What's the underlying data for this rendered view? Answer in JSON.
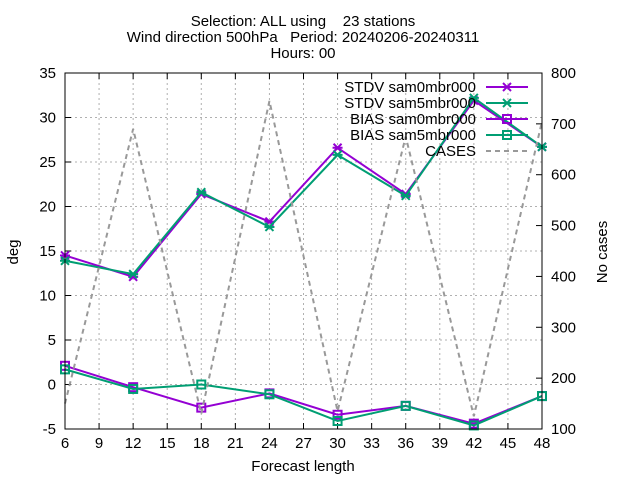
{
  "chart_data": {
    "type": "line",
    "title_lines": [
      "Selection: ALL using    23 stations",
      "Wind direction 500hPa   Period: 20240206-20240311",
      "Hours: 00"
    ],
    "xlabel": "Forecast length",
    "ylabel": "deg",
    "y2label": "No cases",
    "xlim": [
      6,
      48
    ],
    "ylim": [
      -5,
      35
    ],
    "y2lim": [
      100,
      800
    ],
    "xticks": [
      "6",
      "9",
      "12",
      "15",
      "18",
      "21",
      "24",
      "27",
      "30",
      "33",
      "36",
      "39",
      "42",
      "45",
      "48"
    ],
    "yticks": [
      "-5",
      "0",
      "5",
      "10",
      "15",
      "20",
      "25",
      "30",
      "35"
    ],
    "y2ticks": [
      "100",
      "200",
      "300",
      "400",
      "500",
      "600",
      "700",
      "800"
    ],
    "grid": true,
    "legend_position": "top-right",
    "x": [
      6,
      12,
      18,
      24,
      30,
      36,
      42,
      48
    ],
    "series": [
      {
        "name": "STDV sam0mbr000",
        "axis": "y",
        "color": "#9400d3",
        "marker": "x",
        "values": [
          14.5,
          12.1,
          21.4,
          18.3,
          26.6,
          21.4,
          31.9,
          26.7
        ]
      },
      {
        "name": "STDV sam5mbr000",
        "axis": "y",
        "color": "#009e73",
        "marker": "x",
        "values": [
          13.9,
          12.4,
          21.6,
          17.7,
          25.8,
          21.2,
          32.2,
          26.7
        ]
      },
      {
        "name": "BIAS sam0mbr000",
        "axis": "y",
        "color": "#9400d3",
        "marker": "square",
        "values": [
          2.1,
          -0.3,
          -2.6,
          -1.0,
          -3.4,
          -2.4,
          -4.4,
          -1.3
        ]
      },
      {
        "name": "BIAS sam5mbr000",
        "axis": "y",
        "color": "#009e73",
        "marker": "square",
        "values": [
          1.7,
          -0.5,
          0.0,
          -1.1,
          -4.1,
          -2.4,
          -4.6,
          -1.3
        ]
      },
      {
        "name": "CASES",
        "axis": "y2",
        "color": "#999999",
        "marker": "none",
        "dashed": true,
        "values": [
          150,
          690,
          130,
          745,
          135,
          675,
          125,
          705
        ]
      }
    ]
  }
}
